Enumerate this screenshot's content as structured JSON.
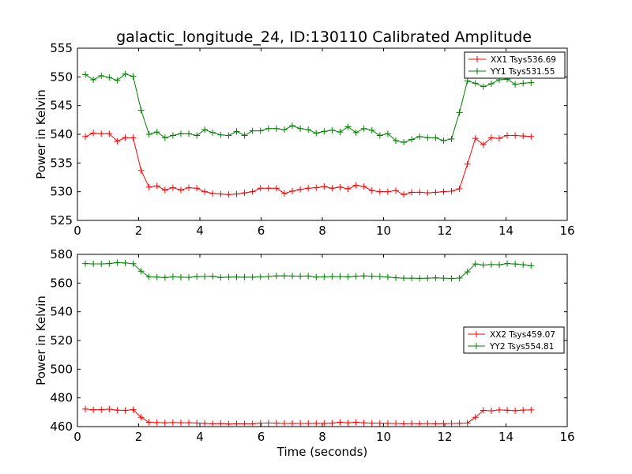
{
  "title": "galactic_longitude_24, ID:130110 Calibrated Amplitude",
  "chart_data": [
    {
      "type": "line",
      "ylabel": "Power in Kelvin",
      "xlabel": "",
      "xlim": [
        0,
        16
      ],
      "ylim": [
        525,
        555
      ],
      "xticks": [
        "0",
        "2",
        "4",
        "6",
        "8",
        "10",
        "12",
        "14",
        "16"
      ],
      "yticks": [
        "525",
        "530",
        "535",
        "540",
        "545",
        "550",
        "555"
      ],
      "legend_position": "top-right",
      "x": [
        0.26,
        0.52,
        0.78,
        1.04,
        1.3,
        1.56,
        1.82,
        2.08,
        2.34,
        2.6,
        2.86,
        3.12,
        3.38,
        3.64,
        3.9,
        4.16,
        4.42,
        4.68,
        4.94,
        5.2,
        5.46,
        5.72,
        5.98,
        6.24,
        6.5,
        6.76,
        7.02,
        7.28,
        7.54,
        7.8,
        8.06,
        8.32,
        8.58,
        8.84,
        9.1,
        9.36,
        9.62,
        9.88,
        10.14,
        10.4,
        10.66,
        10.92,
        11.18,
        11.44,
        11.7,
        11.96,
        12.22,
        12.48,
        12.74,
        13.0,
        13.26,
        13.52,
        13.78,
        14.04,
        14.3,
        14.56,
        14.82
      ],
      "series": [
        {
          "name": "XX1 Tsys536.69",
          "color": "#ff0000",
          "values": [
            539.6,
            540.2,
            540.1,
            540.1,
            538.8,
            539.4,
            539.4,
            533.7,
            530.8,
            531.0,
            530.3,
            530.7,
            530.3,
            530.7,
            530.6,
            530.0,
            529.7,
            529.6,
            529.5,
            529.6,
            529.8,
            530.0,
            530.6,
            530.6,
            530.6,
            529.7,
            530.1,
            530.4,
            530.6,
            530.7,
            530.9,
            530.6,
            530.8,
            530.5,
            531.1,
            530.9,
            530.2,
            530.0,
            530.0,
            530.2,
            529.5,
            529.9,
            529.9,
            529.8,
            529.9,
            530.0,
            530.1,
            530.5,
            534.8,
            539.3,
            538.2,
            539.4,
            539.3,
            539.8,
            539.8,
            539.7,
            539.6
          ]
        },
        {
          "name": "YY1 Tsys531.55",
          "color": "#008000",
          "values": [
            550.4,
            549.5,
            550.2,
            549.9,
            549.4,
            550.5,
            550.1,
            544.2,
            540.0,
            540.4,
            539.4,
            539.8,
            540.1,
            540.1,
            539.8,
            540.8,
            540.3,
            539.9,
            539.8,
            540.5,
            539.8,
            540.6,
            540.6,
            541.0,
            541.0,
            540.8,
            541.5,
            541.0,
            540.8,
            540.2,
            540.5,
            540.7,
            540.4,
            541.3,
            540.3,
            541.0,
            540.7,
            539.8,
            540.1,
            538.9,
            538.6,
            539.1,
            539.6,
            539.4,
            539.4,
            538.9,
            539.2,
            543.8,
            549.3,
            548.9,
            548.3,
            548.8,
            549.5,
            549.6,
            548.7,
            548.9,
            549.0
          ]
        }
      ]
    },
    {
      "type": "line",
      "ylabel": "Power in Kelvin",
      "xlabel": "Time (seconds)",
      "xlim": [
        0,
        16
      ],
      "ylim": [
        460,
        580
      ],
      "xticks": [
        "0",
        "2",
        "4",
        "6",
        "8",
        "10",
        "12",
        "14",
        "16"
      ],
      "yticks": [
        "460",
        "480",
        "500",
        "520",
        "540",
        "560",
        "580"
      ],
      "legend_position": "center-right",
      "x": [
        0.26,
        0.52,
        0.78,
        1.04,
        1.3,
        1.56,
        1.82,
        2.08,
        2.34,
        2.6,
        2.86,
        3.12,
        3.38,
        3.64,
        3.9,
        4.16,
        4.42,
        4.68,
        4.94,
        5.2,
        5.46,
        5.72,
        5.98,
        6.24,
        6.5,
        6.76,
        7.02,
        7.28,
        7.54,
        7.8,
        8.06,
        8.32,
        8.58,
        8.84,
        9.1,
        9.36,
        9.62,
        9.88,
        10.14,
        10.4,
        10.66,
        10.92,
        11.18,
        11.44,
        11.7,
        11.96,
        12.22,
        12.48,
        12.74,
        13.0,
        13.26,
        13.52,
        13.78,
        14.04,
        14.3,
        14.56,
        14.82
      ],
      "series": [
        {
          "name": "XX2 Tsys459.07",
          "color": "#ff0000",
          "values": [
            472.2,
            471.7,
            471.8,
            472.1,
            471.4,
            471.3,
            471.8,
            466.5,
            463.0,
            462.8,
            462.6,
            462.8,
            462.7,
            462.7,
            462.5,
            462.3,
            462.0,
            462.1,
            461.8,
            462.0,
            461.9,
            462.0,
            462.5,
            462.5,
            462.4,
            462.2,
            462.3,
            462.2,
            462.3,
            462.3,
            462.3,
            462.4,
            463.0,
            462.6,
            463.0,
            462.6,
            462.4,
            462.4,
            462.3,
            462.2,
            462.0,
            462.2,
            462.0,
            462.2,
            462.0,
            462.1,
            462.2,
            462.3,
            462.5,
            466.5,
            471.3,
            471.0,
            471.6,
            471.4,
            471.1,
            471.5,
            471.6
          ]
        },
        {
          "name": "YY2 Tsys554.81",
          "color": "#008000",
          "values": [
            573.6,
            573.4,
            573.4,
            573.6,
            574.2,
            574.0,
            573.5,
            568.3,
            564.3,
            564.2,
            563.8,
            564.4,
            564.1,
            564.0,
            564.5,
            564.6,
            564.7,
            563.9,
            564.2,
            564.2,
            564.1,
            564.1,
            564.3,
            564.6,
            565.0,
            565.1,
            564.9,
            564.8,
            564.9,
            564.2,
            564.3,
            564.5,
            564.6,
            564.4,
            564.8,
            565.0,
            564.8,
            564.6,
            564.2,
            563.7,
            563.4,
            563.4,
            563.3,
            563.4,
            563.6,
            563.4,
            563.2,
            563.5,
            567.8,
            573.3,
            572.6,
            572.9,
            572.8,
            573.6,
            573.3,
            572.8,
            572.1
          ]
        }
      ]
    }
  ]
}
